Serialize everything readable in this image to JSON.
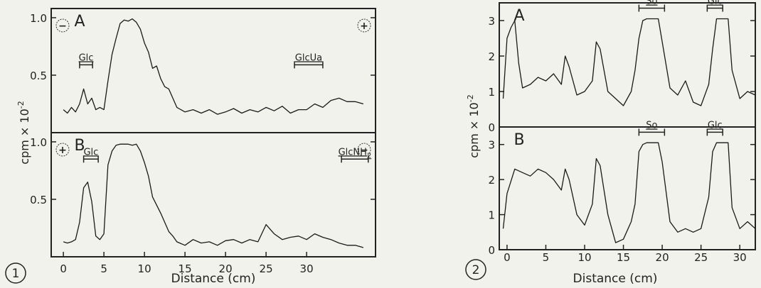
{
  "chart_data": [
    {
      "figure_number": "1",
      "type": "line",
      "xlabel": "Distance  (cm)",
      "ylabel": "cpm × 10",
      "ylabel_exponent": "-2",
      "x_ticks": [
        0,
        5,
        10,
        15,
        20,
        25,
        30
      ],
      "xlim": [
        -1.5,
        38.5
      ],
      "grid": false,
      "panels": [
        {
          "label": "A",
          "ylim": [
            0,
            1.08
          ],
          "y_ticks": [
            {
              "value": 0.5,
              "label": "0.5"
            },
            {
              "value": 1.0,
              "label": "1.0"
            }
          ],
          "polarity_left": "−",
          "polarity_right": "+",
          "markers": [
            {
              "text": "Glc",
              "x_start": 2.0,
              "x_end": 3.6,
              "y": 0.59
            },
            {
              "text": "GlcUa",
              "x_start": 28.5,
              "x_end": 32.0,
              "y": 0.59
            }
          ],
          "series": {
            "x": [
              0,
              0.5,
              1,
              1.5,
              2,
              2.5,
              3,
              3.5,
              4,
              4.5,
              5,
              5.5,
              6,
              6.5,
              7,
              7.5,
              8,
              8.5,
              9,
              9.5,
              10,
              10.5,
              11,
              11.5,
              12,
              12.5,
              13,
              13.5,
              14,
              15,
              16,
              17,
              18,
              19,
              20,
              21,
              22,
              23,
              24,
              25,
              26,
              27,
              28,
              29,
              30,
              31,
              32,
              33,
              34,
              35,
              36,
              37
            ],
            "y": [
              0.2,
              0.17,
              0.22,
              0.18,
              0.25,
              0.38,
              0.25,
              0.3,
              0.2,
              0.22,
              0.2,
              0.45,
              0.68,
              0.82,
              0.95,
              0.98,
              0.97,
              0.99,
              0.96,
              0.9,
              0.78,
              0.7,
              0.56,
              0.58,
              0.47,
              0.4,
              0.38,
              0.3,
              0.22,
              0.18,
              0.2,
              0.17,
              0.2,
              0.16,
              0.18,
              0.21,
              0.17,
              0.2,
              0.18,
              0.22,
              0.19,
              0.23,
              0.17,
              0.2,
              0.2,
              0.25,
              0.22,
              0.28,
              0.3,
              0.27,
              0.27,
              0.25
            ]
          }
        },
        {
          "label": "B",
          "ylim": [
            0,
            1.08
          ],
          "y_ticks": [
            {
              "value": 0.5,
              "label": "0.5"
            },
            {
              "value": 1.0,
              "label": "1.0"
            }
          ],
          "polarity_left": "+",
          "polarity_right": "−",
          "markers": [
            {
              "text": "Glc",
              "x_start": 2.5,
              "x_end": 4.3,
              "y": 0.85
            },
            {
              "text": "GlcNH2",
              "x_start": 34.3,
              "x_end": 37.6,
              "y": 0.85
            }
          ],
          "series": {
            "x": [
              0,
              0.5,
              1,
              1.5,
              2,
              2.5,
              3,
              3.5,
              4,
              4.5,
              5,
              5.5,
              6,
              6.5,
              7,
              7.5,
              8,
              8.5,
              9,
              9.5,
              10,
              10.5,
              11,
              11.5,
              12,
              12.5,
              13,
              13.5,
              14,
              15,
              16,
              17,
              18,
              19,
              20,
              21,
              22,
              23,
              24,
              25,
              26,
              27,
              28,
              29,
              30,
              31,
              32,
              33,
              34,
              35,
              36,
              37
            ],
            "y": [
              0.13,
              0.12,
              0.13,
              0.15,
              0.3,
              0.6,
              0.65,
              0.48,
              0.18,
              0.15,
              0.2,
              0.8,
              0.92,
              0.97,
              0.98,
              0.98,
              0.98,
              0.97,
              0.98,
              0.92,
              0.82,
              0.7,
              0.52,
              0.45,
              0.38,
              0.3,
              0.22,
              0.18,
              0.13,
              0.1,
              0.15,
              0.12,
              0.13,
              0.1,
              0.14,
              0.15,
              0.12,
              0.15,
              0.13,
              0.28,
              0.2,
              0.15,
              0.17,
              0.18,
              0.15,
              0.2,
              0.17,
              0.15,
              0.12,
              0.1,
              0.1,
              0.08
            ]
          }
        }
      ]
    },
    {
      "figure_number": "2",
      "type": "line",
      "xlabel": "Distance  (cm)",
      "ylabel": "cpm × 10",
      "ylabel_exponent": "-2",
      "x_ticks": [
        0,
        5,
        10,
        15,
        20,
        25,
        30
      ],
      "xlim": [
        -1,
        32
      ],
      "grid": false,
      "panels": [
        {
          "label": "A",
          "ylim": [
            0,
            3.5
          ],
          "y_ticks": [
            {
              "value": 0,
              "label": "0"
            },
            {
              "value": 1,
              "label": "1"
            },
            {
              "value": 2,
              "label": "2"
            },
            {
              "value": 3,
              "label": "3"
            }
          ],
          "markers": [
            {
              "text": "So",
              "x_start": 17.0,
              "x_end": 20.3,
              "y": 3.35
            },
            {
              "text": "Glc",
              "x_start": 25.8,
              "x_end": 27.8,
              "y": 3.35
            }
          ],
          "series": {
            "x": [
              -0.5,
              0,
              0.5,
              1,
              1.5,
              2,
              3,
              4,
              5,
              6,
              7,
              7.5,
              8,
              9,
              10,
              11,
              11.5,
              12,
              13,
              14,
              15,
              16,
              16.5,
              17,
              17.5,
              18,
              19,
              19.5,
              20,
              21,
              22,
              23,
              24,
              25,
              26,
              26.5,
              27,
              28,
              28.5,
              29,
              30,
              31,
              32
            ],
            "y": [
              0.8,
              2.5,
              2.8,
              3.0,
              1.8,
              1.1,
              1.2,
              1.4,
              1.3,
              1.5,
              1.2,
              2.0,
              1.7,
              0.9,
              1.0,
              1.3,
              2.4,
              2.2,
              1.0,
              0.8,
              0.6,
              1.0,
              1.6,
              2.5,
              3.0,
              3.05,
              3.05,
              3.05,
              2.4,
              1.1,
              0.9,
              1.3,
              0.7,
              0.6,
              1.2,
              2.2,
              3.05,
              3.05,
              3.05,
              1.6,
              0.8,
              1.0,
              0.9
            ]
          }
        },
        {
          "label": "B",
          "ylim": [
            0,
            3.5
          ],
          "y_ticks": [
            {
              "value": 0,
              "label": "0"
            },
            {
              "value": 1,
              "label": "1"
            },
            {
              "value": 2,
              "label": "2"
            },
            {
              "value": 3,
              "label": "3"
            }
          ],
          "markers": [
            {
              "text": "So",
              "x_start": 17.0,
              "x_end": 20.3,
              "y": 3.35
            },
            {
              "text": "Glc",
              "x_start": 25.8,
              "x_end": 27.8,
              "y": 3.35
            }
          ],
          "series": {
            "x": [
              -0.5,
              0,
              1,
              2,
              3,
              4,
              5,
              6,
              7,
              7.5,
              8,
              9,
              10,
              11,
              11.5,
              12,
              13,
              14,
              15,
              16,
              16.5,
              17,
              17.5,
              18,
              19,
              19.5,
              20,
              21,
              22,
              23,
              24,
              25,
              26,
              26.5,
              27,
              28,
              28.5,
              29,
              30,
              31,
              32
            ],
            "y": [
              0.6,
              1.6,
              2.3,
              2.2,
              2.1,
              2.3,
              2.2,
              2.0,
              1.7,
              2.3,
              2.0,
              1.0,
              0.7,
              1.3,
              2.6,
              2.4,
              1.0,
              0.2,
              0.3,
              0.8,
              1.3,
              2.8,
              3.0,
              3.05,
              3.05,
              3.05,
              2.5,
              0.8,
              0.5,
              0.6,
              0.5,
              0.6,
              1.5,
              2.8,
              3.05,
              3.05,
              3.05,
              1.2,
              0.6,
              0.8,
              0.6
            ]
          }
        }
      ]
    }
  ]
}
